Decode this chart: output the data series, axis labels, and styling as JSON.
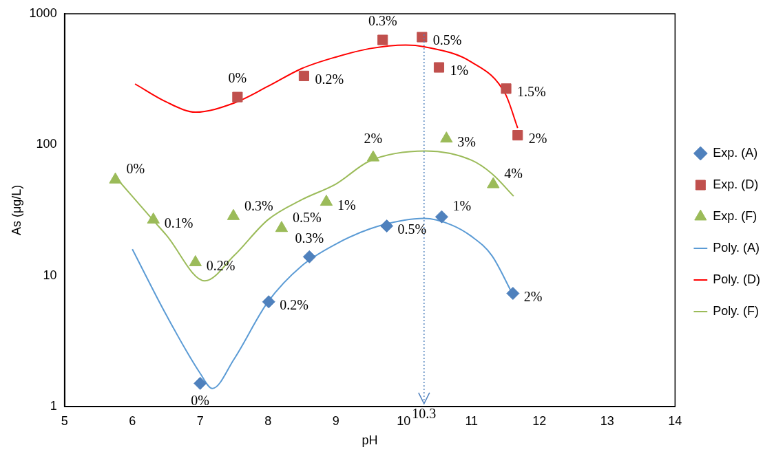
{
  "chart_data": {
    "type": "scatter",
    "xlabel": "pH",
    "ylabel": "As (μg/L)",
    "log": "y",
    "xlim": [
      5,
      14
    ],
    "xticks": [
      5,
      6,
      7,
      8,
      9,
      10,
      11,
      12,
      13,
      14
    ],
    "ylim": [
      1,
      1000
    ],
    "yticks": [
      1,
      10,
      100,
      1000
    ],
    "grid": false,
    "legend": "right",
    "series": [
      {
        "name": "Exp. (A)",
        "marker": "diamond",
        "color": "#4f81bd",
        "x": [
          7.0,
          8.01,
          8.61,
          9.75,
          10.56,
          11.61
        ],
        "values": [
          1.5,
          6.3,
          13.9,
          23.9,
          28.1,
          7.3
        ]
      },
      {
        "name": "Exp. (D)",
        "marker": "square",
        "color": "#c0504d",
        "x": [
          7.55,
          8.53,
          9.69,
          10.27,
          10.52,
          11.51,
          11.68
        ],
        "values": [
          231,
          335,
          631,
          663,
          389,
          268,
          118
        ]
      },
      {
        "name": "Exp. (F)",
        "marker": "triangle",
        "color": "#9bbb59",
        "x": [
          5.75,
          6.31,
          6.93,
          7.49,
          8.2,
          8.86,
          9.55,
          10.63,
          11.32
        ],
        "values": [
          54,
          26.7,
          12.6,
          28.4,
          23,
          36.5,
          79.6,
          111,
          49.7
        ]
      },
      {
        "name": "Poly. (A)",
        "type": "line",
        "marker": "none",
        "line_style": "solid",
        "color": "#5b9bd5",
        "x": [
          6.0,
          6.5,
          7.0,
          7.18,
          7.5,
          8.0,
          8.5,
          9.0,
          9.5,
          10.0,
          10.3,
          10.7,
          11.0,
          11.3,
          11.6
        ],
        "values": [
          15.9,
          5.0,
          1.79,
          1.37,
          2.3,
          6.3,
          11.9,
          17.4,
          22.7,
          26.4,
          27.3,
          24.4,
          19.9,
          14.2,
          7.3
        ]
      },
      {
        "name": "Poly. (D)",
        "type": "line",
        "marker": "none",
        "line_style": "solid",
        "color": "#ff0000",
        "x": [
          6.04,
          6.5,
          6.93,
          7.5,
          8.0,
          8.5,
          9.0,
          9.5,
          10.03,
          10.3,
          11.0,
          11.5,
          11.68
        ],
        "values": [
          291,
          212,
          177,
          208,
          279,
          382,
          467,
          542,
          577,
          560,
          427,
          243,
          134
        ]
      },
      {
        "name": "Poly. (F)",
        "type": "line",
        "marker": "none",
        "line_style": "solid",
        "color": "#9bbb59",
        "x": [
          5.8,
          6.3,
          6.5,
          7.07,
          7.5,
          8.0,
          8.5,
          9.0,
          9.5,
          10.32,
          11.0,
          11.3,
          11.62
        ],
        "values": [
          53,
          26.7,
          20.4,
          9.1,
          14.2,
          26.7,
          38,
          50,
          75,
          89.3,
          76,
          60,
          40.4
        ]
      }
    ],
    "annotations": [
      {
        "text": "0%",
        "x": 7.0,
        "y": 1.5
      },
      {
        "text": "0.2%",
        "x": 8.01,
        "y": 6.3
      },
      {
        "text": "0.3%",
        "x": 8.61,
        "y": 13.9
      },
      {
        "text": "0.5%",
        "x": 9.75,
        "y": 23.9
      },
      {
        "text": "1%",
        "x": 10.56,
        "y": 28.1
      },
      {
        "text": "2%",
        "x": 11.61,
        "y": 7.3
      },
      {
        "text": "0%",
        "x": 7.55,
        "y": 231
      },
      {
        "text": "0.2%",
        "x": 8.53,
        "y": 335
      },
      {
        "text": "0.3%",
        "x": 9.69,
        "y": 631
      },
      {
        "text": "0.5%",
        "x": 10.27,
        "y": 663
      },
      {
        "text": "1%",
        "x": 10.52,
        "y": 389
      },
      {
        "text": "1.5%",
        "x": 11.51,
        "y": 268
      },
      {
        "text": "2%",
        "x": 11.68,
        "y": 118
      },
      {
        "text": "0%",
        "x": 5.75,
        "y": 54
      },
      {
        "text": "0.1%",
        "x": 6.31,
        "y": 26.7
      },
      {
        "text": "0.2%",
        "x": 6.93,
        "y": 12.6
      },
      {
        "text": "0.3%",
        "x": 7.49,
        "y": 28.4
      },
      {
        "text": "0.5%",
        "x": 8.2,
        "y": 23
      },
      {
        "text": "1%",
        "x": 8.86,
        "y": 36.5
      },
      {
        "text": "2%",
        "x": 9.55,
        "y": 79.6
      },
      {
        "text": "3%",
        "x": 10.63,
        "y": 111
      },
      {
        "text": "4%",
        "x": 11.32,
        "y": 49.7
      }
    ],
    "ref_lines": [
      {
        "axis": "x",
        "value": 10.3,
        "label": "10.3",
        "color": "#4f81bd",
        "line_style": "dotted"
      }
    ]
  }
}
